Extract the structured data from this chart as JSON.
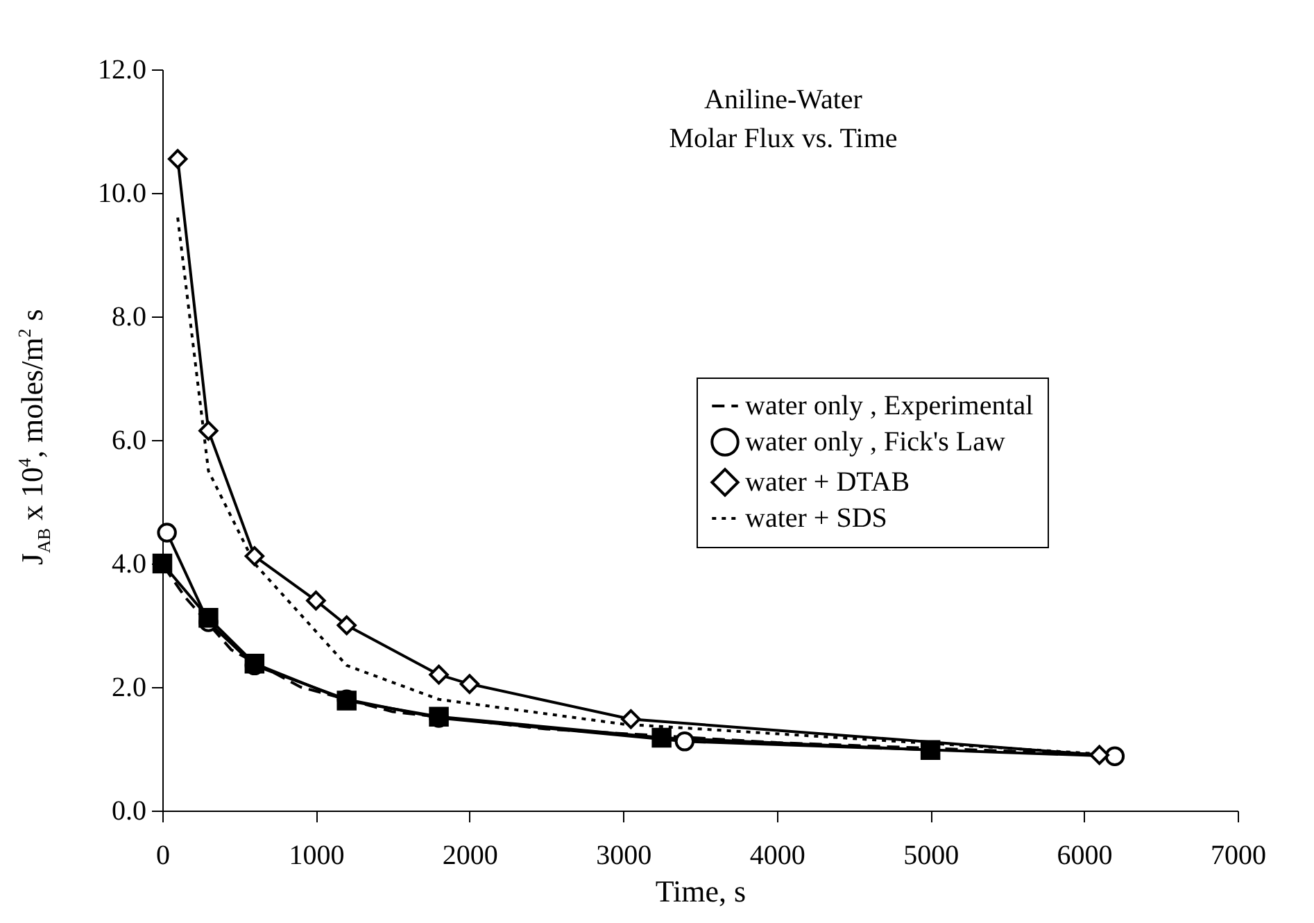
{
  "chart_data": {
    "type": "line",
    "title": "Aniline-Water",
    "subtitle": "Molar Flux  vs. Time",
    "xlabel": "Time,  s",
    "ylabel": "J$_{AB}$ x 10$^{4}$, moles/m$^{2}$ s",
    "xlim": [
      0,
      7000
    ],
    "xticks": [
      0,
      1000,
      2000,
      3000,
      4000,
      5000,
      6000,
      7000
    ],
    "ylim": [
      0,
      12
    ],
    "yticks": [
      {
        "value": 0,
        "label": "0.0"
      },
      {
        "value": 2,
        "label": "2.0"
      },
      {
        "value": 4,
        "label": "4.0"
      },
      {
        "value": 6,
        "label": "6.0"
      },
      {
        "value": 8,
        "label": "8.0"
      },
      {
        "value": 10,
        "label": "10.0"
      },
      {
        "value": 12,
        "label": "12.0"
      }
    ],
    "grid": false,
    "legend": "right",
    "series": [
      {
        "name": "water only , Experimental",
        "color": "#000000",
        "line_style": "dashed",
        "marker": "none",
        "x": [
          10,
          150,
          450,
          900,
          1500,
          2500,
          4000,
          6200
        ],
        "values": [
          3.95,
          3.45,
          2.6,
          2.0,
          1.6,
          1.32,
          1.1,
          0.9
        ]
      },
      {
        "name": "water only , Fick's Law",
        "color": "#000000",
        "line_style": "solid",
        "marker": "circle",
        "x": [
          30,
          300,
          600,
          1200,
          1800,
          3400,
          6200
        ],
        "values": [
          4.5,
          3.05,
          2.35,
          1.8,
          1.5,
          1.12,
          0.88
        ]
      },
      {
        "color": "#000000",
        "line_style": "solid",
        "marker": "square",
        "x": [
          0,
          300,
          600,
          1200,
          1800,
          3250,
          5000
        ],
        "values": [
          4.0,
          3.12,
          2.38,
          1.78,
          1.52,
          1.18,
          0.98
        ]
      },
      {
        "name": "water + DTAB",
        "color": "#000000",
        "line_style": "solid",
        "marker": "diamond",
        "x": [
          100,
          300,
          600,
          1000,
          1200,
          1800,
          2000,
          3050,
          6100
        ],
        "values": [
          10.55,
          6.15,
          4.12,
          3.4,
          3.0,
          2.2,
          2.05,
          1.48,
          0.9
        ]
      },
      {
        "name": "water + SDS",
        "color": "#000000",
        "line_style": "dotted",
        "marker": "none",
        "x": [
          100,
          300,
          600,
          1200,
          1800,
          3000,
          6200
        ],
        "values": [
          9.6,
          5.5,
          4.0,
          2.35,
          1.8,
          1.4,
          0.9
        ]
      }
    ]
  }
}
